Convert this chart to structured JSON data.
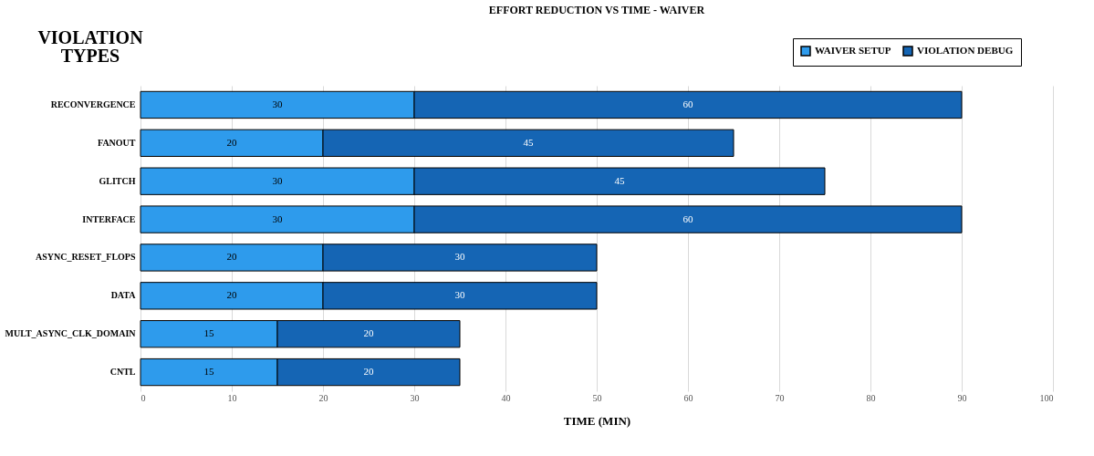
{
  "chart_data": {
    "type": "bar",
    "orientation": "horizontal",
    "stacked": true,
    "title": "EFFORT REDUCTION VS TIME - WAIVER",
    "xlabel": "TIME (MIN)",
    "annotations": [
      "VIOLATION TYPES"
    ],
    "categories": [
      "RECONVERGENCE",
      "FANOUT",
      "GLITCH",
      "INTERFACE",
      "ASYNC_RESET_FLOPS",
      "DATA",
      "MULT_ASYNC_CLK_DOMAIN",
      "CNTL"
    ],
    "series": [
      {
        "name": "WAIVER SETUP",
        "color": "#2e9bec",
        "values": [
          30,
          20,
          30,
          30,
          20,
          20,
          15,
          15
        ]
      },
      {
        "name": "VIOLATION DEBUG",
        "color": "#1565b4",
        "values": [
          60,
          45,
          45,
          60,
          30,
          30,
          20,
          20
        ]
      }
    ],
    "xlim": [
      0,
      100
    ],
    "xticks": [
      0,
      10,
      20,
      30,
      40,
      50,
      60,
      70,
      80,
      90,
      100
    ],
    "grid": "x",
    "legend": "top right",
    "data_labels": true
  }
}
